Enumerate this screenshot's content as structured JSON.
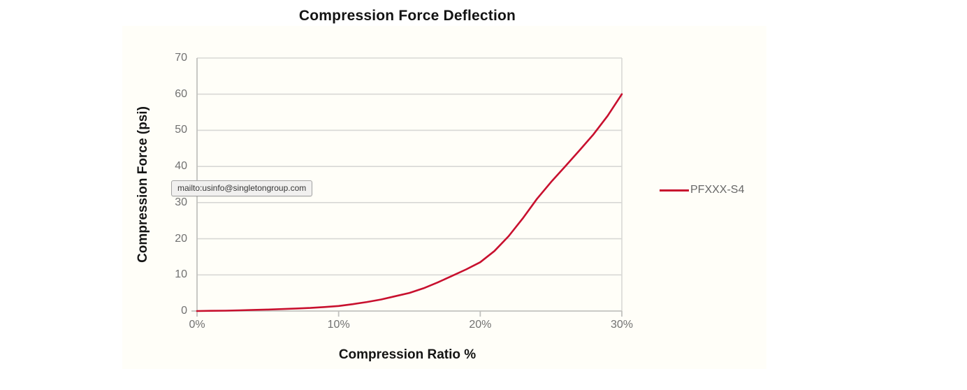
{
  "page": {
    "background": "#ffffff",
    "chart_block_background": "#fffef8"
  },
  "tooltip": {
    "text": "mailto:usinfo@singletongroup.com"
  },
  "chart_data": {
    "type": "line",
    "title": "Compression Force Deflection",
    "xlabel": "Compression Ratio %",
    "ylabel": "Compression Force (psi)",
    "xlim": [
      0,
      30
    ],
    "ylim": [
      0,
      70
    ],
    "x_ticks": [
      0,
      10,
      20,
      30
    ],
    "x_tick_labels": [
      "0%",
      "10%",
      "20%",
      "30%"
    ],
    "y_ticks": [
      0,
      10,
      20,
      30,
      40,
      50,
      60,
      70
    ],
    "grid": "horizontal gridlines on, right plot border on, no vertical gridlines",
    "legend_position": "right, middle",
    "colors": {
      "gridline": "#d8d8d5",
      "axis_line": "#c2c2bf",
      "tick_label": "#717171",
      "title_text": "#141414",
      "legend_text": "#686868",
      "series_red": "#c8102e"
    },
    "series": [
      {
        "name": "PFXXX-S4",
        "color": "#c8102e",
        "x": [
          0,
          1,
          2,
          3,
          4,
          5,
          6,
          7,
          8,
          9,
          10,
          11,
          12,
          13,
          14,
          15,
          16,
          17,
          18,
          19,
          20,
          21,
          22,
          23,
          24,
          25,
          26,
          27,
          28,
          29,
          30
        ],
        "y": [
          0,
          0.05,
          0.1,
          0.2,
          0.3,
          0.4,
          0.55,
          0.7,
          0.85,
          1.1,
          1.4,
          1.9,
          2.5,
          3.2,
          4.1,
          5.0,
          6.3,
          7.9,
          9.7,
          11.5,
          13.5,
          16.6,
          20.7,
          25.6,
          31.0,
          35.7,
          40.0,
          44.4,
          48.9,
          54.0,
          60.0
        ]
      }
    ]
  }
}
